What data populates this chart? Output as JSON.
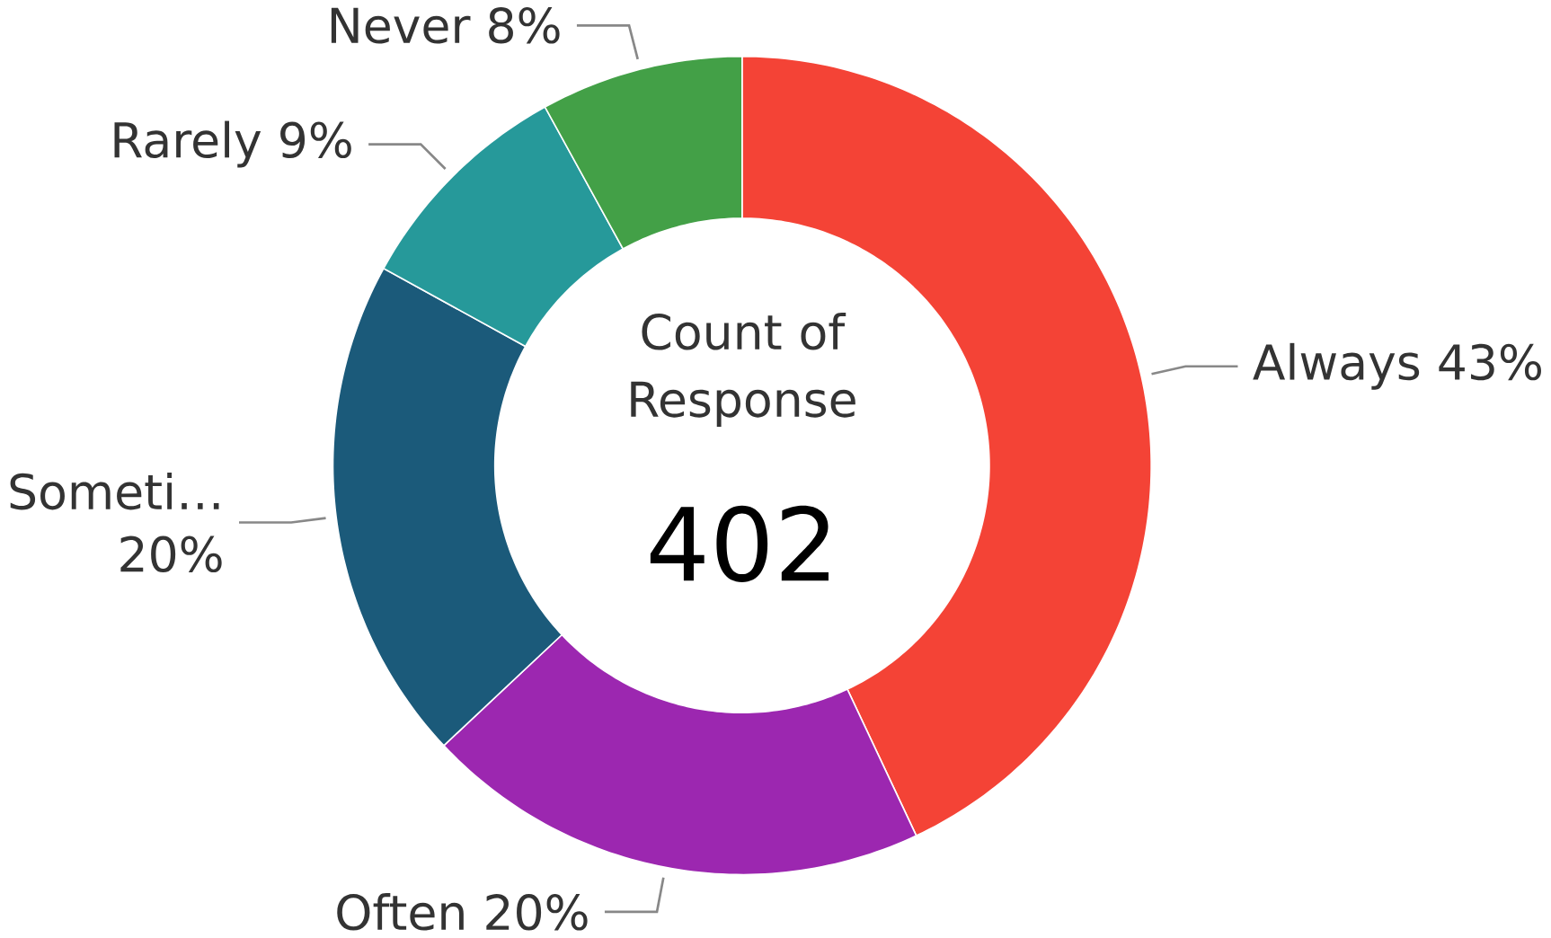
{
  "chart_data": {
    "type": "donut",
    "categories": [
      "Always",
      "Often",
      "Someti…",
      "Rarely",
      "Never"
    ],
    "values": [
      43,
      20,
      20,
      9,
      8
    ],
    "value_labels": [
      "43%",
      "20%",
      "20%",
      "9%",
      "8%"
    ],
    "colors": [
      "#f44336",
      "#9c27b0",
      "#1b5a7a",
      "#26999a",
      "#43a047"
    ],
    "annotations": [
      "Count of Response",
      "402"
    ]
  }
}
